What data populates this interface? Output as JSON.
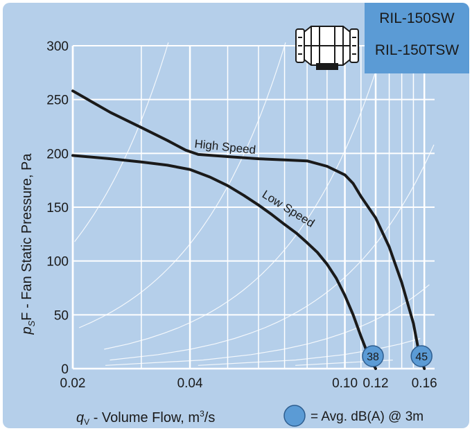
{
  "models": [
    "RIL-150SW",
    "RIL-150TSW"
  ],
  "legend_note": "= Avg. dB(A) @ 3m",
  "icons": {
    "product": "inline-duct-fan-icon",
    "marker": "sound-level-marker-icon"
  },
  "colors": {
    "background": "#b5cfea",
    "grid": "#ffffff",
    "curve": "#1a1a1a",
    "marker": "#5b9bd5",
    "model_box": "#5b9bd5"
  },
  "chart_data": {
    "type": "line",
    "x_scale": "log",
    "xlim": [
      0.02,
      0.17
    ],
    "ylim": [
      0,
      300
    ],
    "xlabel": {
      "main": "q",
      "sub": "V",
      "rest": " - Volume Flow, m",
      "sup": "3",
      "end": "/s"
    },
    "ylabel": {
      "main": "p",
      "sub": "S",
      "rest": "F - Fan Static Pressure, Pa"
    },
    "x_ticks": [
      {
        "value": 0.02,
        "label": "0.02"
      },
      {
        "value": 0.04,
        "label": "0.04"
      },
      {
        "value": 0.1,
        "label": "0.10"
      },
      {
        "value": 0.12,
        "label": "0.12"
      },
      {
        "value": 0.16,
        "label": "0.16"
      }
    ],
    "x_minor_grid": [
      0.03,
      0.05,
      0.06,
      0.07,
      0.08,
      0.09,
      0.11,
      0.13,
      0.14,
      0.15
    ],
    "y_ticks": [
      0,
      50,
      100,
      150,
      200,
      250,
      300
    ],
    "grid": true,
    "series": [
      {
        "name": "High Speed",
        "dba": "45",
        "x": [
          0.02,
          0.025,
          0.03,
          0.035,
          0.039,
          0.042,
          0.05,
          0.06,
          0.07,
          0.08,
          0.09,
          0.1,
          0.105,
          0.11,
          0.12,
          0.13,
          0.14,
          0.15,
          0.155,
          0.16
        ],
        "y": [
          258,
          238,
          224,
          212,
          203,
          199,
          197,
          195,
          194,
          193,
          188,
          180,
          172,
          160,
          140,
          113,
          80,
          42,
          15,
          0
        ]
      },
      {
        "name": "Low Speed",
        "dba": "38",
        "x": [
          0.02,
          0.025,
          0.03,
          0.035,
          0.04,
          0.045,
          0.05,
          0.055,
          0.06,
          0.065,
          0.07,
          0.075,
          0.08,
          0.085,
          0.09,
          0.095,
          0.1,
          0.105,
          0.11,
          0.115,
          0.12
        ],
        "y": [
          198,
          195,
          192,
          189,
          185,
          178,
          170,
          161,
          152,
          143,
          134,
          126,
          117,
          108,
          97,
          84,
          68,
          50,
          30,
          12,
          0
        ]
      }
    ]
  }
}
